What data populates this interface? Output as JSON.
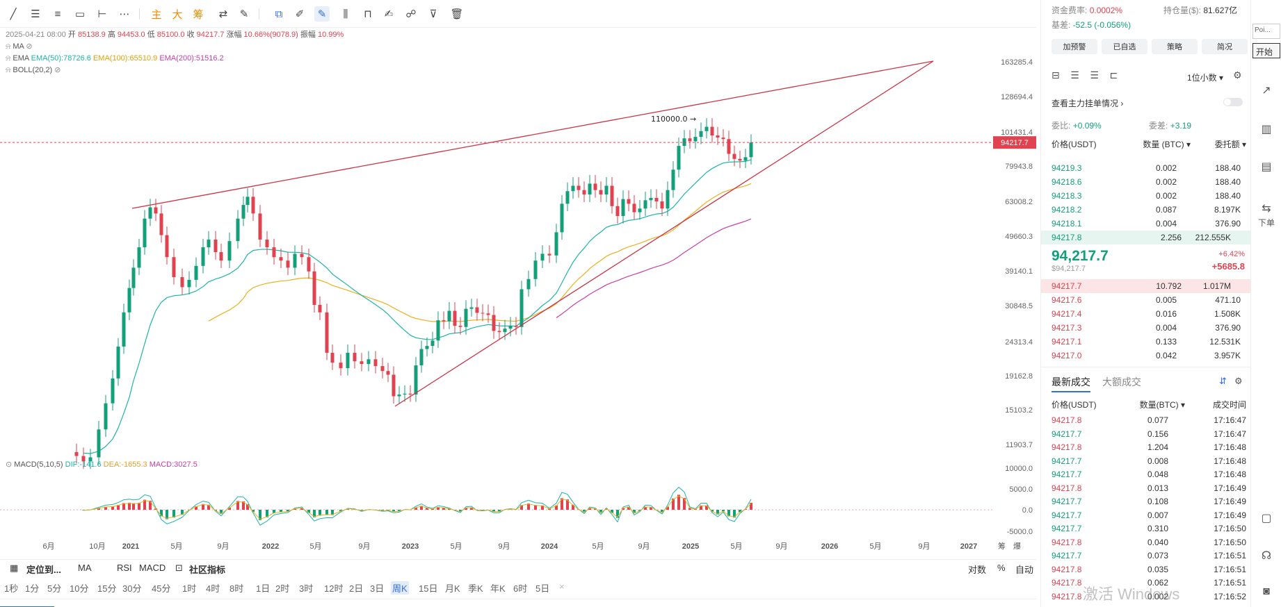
{
  "toolbar": {
    "zhu": "主",
    "da": "大",
    "chou": "筹"
  },
  "legend": {
    "date": "2025-04-21 08:00",
    "open_label": "开",
    "open": "85138.9",
    "high_label": "高",
    "high": "94453.0",
    "low_label": "低",
    "low": "85100.0",
    "close_label": "收",
    "close": "94217.7",
    "change_label": "涨幅",
    "change": "10.66%(9078.9)",
    "amp_label": "振幅",
    "amp": "10.99%",
    "ma": "MA",
    "ema": "EMA",
    "ema50": "EMA(50):78726.6",
    "ema100": "EMA(100):65510.9",
    "ema200": "EMA(200):51516.2",
    "boll": "BOLL(20,2)"
  },
  "macd_legend": {
    "name": "MACD(5,10,5)",
    "dif": "DIF:-141.6",
    "dea": "DEA:-1655.3",
    "macd": "MACD:3027.5"
  },
  "price_axis": [
    "163285.4",
    "128694.4",
    "101431.4",
    "79943.8",
    "63008.2",
    "49660.3",
    "39140.1",
    "30848.5",
    "24313.4",
    "19162.8",
    "15103.2",
    "11903.7"
  ],
  "macd_axis": [
    "10000.0",
    "5000.0",
    "0.0",
    "-5000.0"
  ],
  "current_price_tag": "94217.7",
  "peak_label": "110000.0 →",
  "time_axis": [
    "6月",
    "10月",
    "2021",
    "5月",
    "9月",
    "2022",
    "5月",
    "9月",
    "2023",
    "5月",
    "9月",
    "2024",
    "5月",
    "9月",
    "2025",
    "5月",
    "9月",
    "2026",
    "5月",
    "9月",
    "2027"
  ],
  "axis_corner": [
    "筹",
    "爆"
  ],
  "bottom_bar1": {
    "locate": "定位到...",
    "ma": "MA",
    "rsi": "RSI",
    "macd": "MACD",
    "community": "社区指标",
    "log": "对数",
    "pct": "%",
    "auto": "自动"
  },
  "intervals": [
    "1秒",
    "1分",
    "5分",
    "10分",
    "15分",
    "30分",
    "45分",
    "1时",
    "4时",
    "8时",
    "1日",
    "2时",
    "3时",
    "12时",
    "2日",
    "3日",
    "周K",
    "15日",
    "月K",
    "季K",
    "年K",
    "6时",
    "5日"
  ],
  "active_interval": "周K",
  "side": {
    "funding_label": "资金费率:",
    "funding": "0.0002%",
    "oi_label": "持仓量($):",
    "oi": "81.627亿",
    "basis_label": "基差:",
    "basis": "-52.5 (-0.056%)",
    "buttons": [
      "加预警",
      "已自选",
      "策略",
      "简况"
    ],
    "precision": "1位小数",
    "view_main": "查看主力挂单情况",
    "wb_label": "委比:",
    "wb": "+0.09%",
    "wc_label": "委差:",
    "wc": "+3.19",
    "col_price": "价格(USDT)",
    "col_qty": "数量 (BTC)",
    "col_total": "委托额",
    "asks": [
      {
        "p": "94219.3",
        "q": "0.002",
        "t": "188.40"
      },
      {
        "p": "94218.6",
        "q": "0.002",
        "t": "188.40"
      },
      {
        "p": "94218.3",
        "q": "0.002",
        "t": "188.40"
      },
      {
        "p": "94218.2",
        "q": "0.087",
        "t": "8.197K"
      },
      {
        "p": "94218.1",
        "q": "0.004",
        "t": "376.90"
      },
      {
        "p": "94217.8",
        "q": "2.256",
        "t": "212.555K"
      }
    ],
    "last_price": "94,217.7",
    "last_usd": "$94,217.7",
    "last_pct": "+6.42%",
    "last_chg": "+5685.8",
    "bids": [
      {
        "p": "94217.7",
        "q": "10.792",
        "t": "1.017M"
      },
      {
        "p": "94217.6",
        "q": "0.005",
        "t": "471.10"
      },
      {
        "p": "94217.4",
        "q": "0.016",
        "t": "1.508K"
      },
      {
        "p": "94217.3",
        "q": "0.004",
        "t": "376.90"
      },
      {
        "p": "94217.1",
        "q": "0.133",
        "t": "12.531K"
      },
      {
        "p": "94217.0",
        "q": "0.042",
        "t": "3.957K"
      }
    ],
    "trades_tab": "最新成交",
    "big_tab": "大额成交",
    "t_col_price": "价格(USDT)",
    "t_col_qty": "数量(BTC)",
    "t_col_time": "成交时间",
    "trades": [
      {
        "p": "94217.8",
        "q": "0.077",
        "t": "17:16:47",
        "side": "sell"
      },
      {
        "p": "94217.7",
        "q": "0.156",
        "t": "17:16:47",
        "side": "buy"
      },
      {
        "p": "94217.8",
        "q": "1.204",
        "t": "17:16:48",
        "side": "sell"
      },
      {
        "p": "94217.7",
        "q": "0.008",
        "t": "17:16:48",
        "side": "buy"
      },
      {
        "p": "94217.7",
        "q": "0.048",
        "t": "17:16:48",
        "side": "buy"
      },
      {
        "p": "94217.8",
        "q": "0.013",
        "t": "17:16:49",
        "side": "sell"
      },
      {
        "p": "94217.7",
        "q": "0.108",
        "t": "17:16:49",
        "side": "buy"
      },
      {
        "p": "94217.7",
        "q": "0.007",
        "t": "17:16:49",
        "side": "buy"
      },
      {
        "p": "94217.7",
        "q": "0.310",
        "t": "17:16:50",
        "side": "buy"
      },
      {
        "p": "94217.8",
        "q": "0.040",
        "t": "17:16:50",
        "side": "sell"
      },
      {
        "p": "94217.7",
        "q": "0.073",
        "t": "17:16:51",
        "side": "buy"
      },
      {
        "p": "94217.8",
        "q": "0.035",
        "t": "17:16:51",
        "side": "sell"
      },
      {
        "p": "94217.8",
        "q": "0.062",
        "t": "17:16:51",
        "side": "sell"
      },
      {
        "p": "94217.8",
        "q": "0.002",
        "t": "17:16:52",
        "side": "sell"
      }
    ]
  },
  "strip": {
    "poi": "Poi...",
    "start": "开始",
    "order": "下单"
  },
  "watermark": "激活 Windows",
  "colors": {
    "up": "#12a07a",
    "down": "#e0424f",
    "accent": "#2f6fe0",
    "ema50": "#1cb4a8",
    "ema100": "#e8b21c",
    "ema200": "#c63fa8",
    "trendline": "#cc3344"
  }
}
